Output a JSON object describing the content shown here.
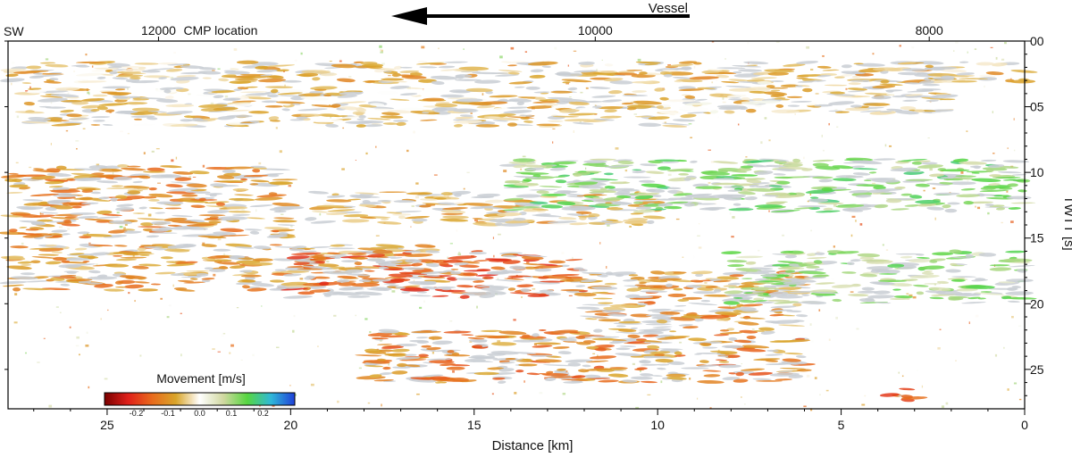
{
  "chart_data": {
    "type": "heatmap",
    "title": "",
    "direction": {
      "label": "Vessel",
      "arrow": "left"
    },
    "corner_label": "SW",
    "top_axis": {
      "label": "CMP location",
      "ticks": [
        {
          "value": "12000",
          "distance_km": 23.6
        },
        {
          "value": "10000",
          "distance_km": 11.7
        },
        {
          "value": "8000",
          "distance_km": 2.6
        }
      ]
    },
    "xaxis": {
      "label": "Distance [km]",
      "range": [
        27.7,
        0
      ],
      "ticks": [
        "25",
        "20",
        "15",
        "10",
        "5",
        "0"
      ],
      "tick_values": [
        25,
        20,
        15,
        10,
        5,
        0
      ]
    },
    "yaxis": {
      "label": "TWTT [s]",
      "range": [
        0,
        28
      ],
      "ticks": [
        "00",
        "05",
        "10",
        "15",
        "20",
        "25"
      ],
      "tick_values": [
        0,
        5,
        10,
        15,
        20,
        25
      ],
      "side": "right"
    },
    "colorbar": {
      "label": "Movement [m/s]",
      "range": [
        -0.3,
        0.3
      ],
      "ticks": [
        "-0.2",
        "-0.1",
        "0.0",
        "0.1",
        "0.2"
      ],
      "tick_values": [
        -0.2,
        -0.1,
        0.0,
        0.1,
        0.2
      ],
      "colors": [
        "#7a0000",
        "#e0201a",
        "#e86a1c",
        "#d9a52a",
        "#ffffff",
        "#d0d8a0",
        "#56d640",
        "#2fb8d8",
        "#1f40d8"
      ]
    },
    "reflectors": [
      {
        "x0": 27.7,
        "x1": 0,
        "t0": 1.6,
        "t1": 3.2,
        "value": -0.06
      },
      {
        "x0": 27.2,
        "x1": 9,
        "t0": 3.5,
        "t1": 6.5,
        "value": -0.05
      },
      {
        "x0": 9,
        "x1": 2,
        "t0": 3,
        "t1": 5.5,
        "value": -0.04
      },
      {
        "x0": 27.7,
        "x1": 20,
        "t0": 9.5,
        "t1": 15,
        "value": -0.1
      },
      {
        "x0": 19.5,
        "x1": 10,
        "t0": 11.5,
        "t1": 14,
        "value": -0.06
      },
      {
        "x0": 14,
        "x1": 0,
        "t0": 9,
        "t1": 13,
        "value": 0.12
      },
      {
        "x0": 27.7,
        "x1": 16,
        "t0": 15.5,
        "t1": 19,
        "value": -0.09
      },
      {
        "x0": 20,
        "x1": 12,
        "t0": 16,
        "t1": 19.5,
        "value": -0.16
      },
      {
        "x0": 12,
        "x1": 6,
        "t0": 17.5,
        "t1": 22,
        "value": -0.1
      },
      {
        "x0": 8,
        "x1": 0,
        "t0": 16,
        "t1": 20,
        "value": 0.1
      },
      {
        "x0": 18,
        "x1": 6,
        "t0": 22,
        "t1": 26,
        "value": -0.12
      },
      {
        "x0": 4,
        "x1": 3,
        "t0": 26.5,
        "t1": 27.5,
        "value": -0.18
      }
    ]
  }
}
